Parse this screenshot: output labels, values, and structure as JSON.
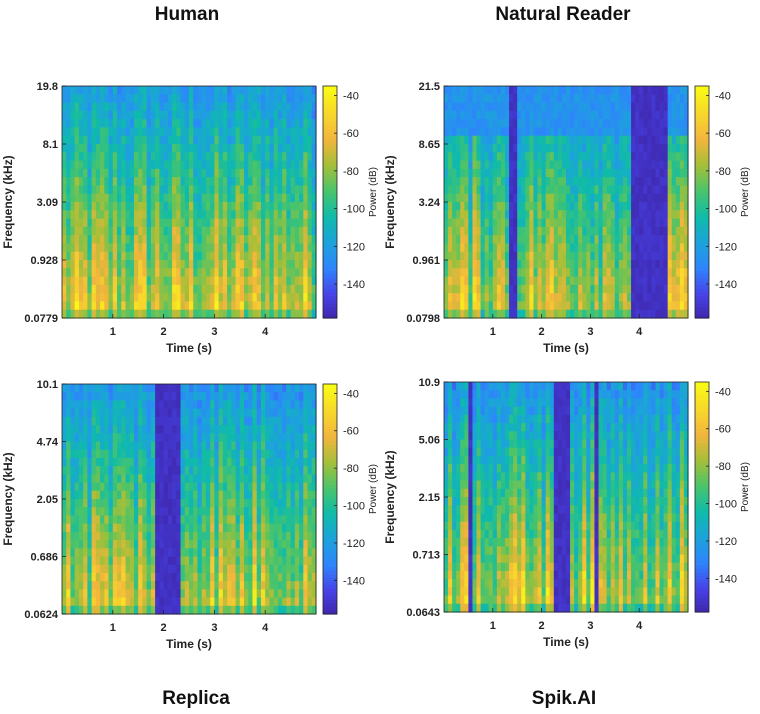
{
  "titles": {
    "human": "Human",
    "natural_reader": "Natural Reader",
    "replica": "Replica",
    "spik_ai": "Spik.AI"
  },
  "colors": {
    "colormap": [
      "#3e26a8",
      "#4743e8",
      "#2e85fc",
      "#1ca3db",
      "#0fbba9",
      "#4ac46a",
      "#a6bf38",
      "#f2b53d",
      "#f8d82b",
      "#f9fb15"
    ],
    "axis": "#222222"
  },
  "chart_data": [
    {
      "type": "heatmap",
      "name": "Human",
      "xlabel": "Time (s)",
      "ylabel": "Frequency (kHz)",
      "colorbar_label": "Power (dB)",
      "x_ticks": [
        "1",
        "2",
        "3",
        "4"
      ],
      "x_tick_values": [
        1,
        2,
        3,
        4
      ],
      "xlim": [
        0,
        5
      ],
      "y_ticks": [
        "0.0779",
        "0.928",
        "3.09",
        "8.1",
        "19.8"
      ],
      "colorbar_ticks": [
        "-40",
        "-60",
        "-80",
        "-100",
        "-120",
        "-140"
      ],
      "colorbar_tick_values": [
        -40,
        -60,
        -80,
        -100,
        -120,
        -140
      ],
      "clim": [
        -158,
        -35
      ],
      "gaps": []
    },
    {
      "type": "heatmap",
      "name": "Natural Reader",
      "xlabel": "Time (s)",
      "ylabel": "Frequency (kHz)",
      "colorbar_label": "Power (dB)",
      "x_ticks": [
        "1",
        "2",
        "3",
        "4"
      ],
      "x_tick_values": [
        1,
        2,
        3,
        4
      ],
      "xlim": [
        0,
        5
      ],
      "y_ticks": [
        "0.0798",
        "0.961",
        "3.24",
        "8.65",
        "21.5"
      ],
      "colorbar_ticks": [
        "-40",
        "-60",
        "-80",
        "-100",
        "-120",
        "-140"
      ],
      "colorbar_tick_values": [
        -40,
        -60,
        -80,
        -100,
        -120,
        -140
      ],
      "clim": [
        -158,
        -35
      ],
      "gaps": [
        [
          1.35,
          1.5
        ],
        [
          3.8,
          4.6
        ]
      ]
    },
    {
      "type": "heatmap",
      "name": "Replica",
      "xlabel": "Time (s)",
      "ylabel": "Frequency (kHz)",
      "colorbar_label": "Power (dB)",
      "x_ticks": [
        "1",
        "2",
        "3",
        "4"
      ],
      "x_tick_values": [
        1,
        2,
        3,
        4
      ],
      "xlim": [
        0,
        5
      ],
      "y_ticks": [
        "0.0624",
        "0.686",
        "2.05",
        "4.74",
        "10.1"
      ],
      "colorbar_ticks": [
        "-40",
        "-60",
        "-80",
        "-100",
        "-120",
        "-140"
      ],
      "colorbar_tick_values": [
        -40,
        -60,
        -80,
        -100,
        -120,
        -140
      ],
      "clim": [
        -158,
        -35
      ],
      "gaps": [
        [
          1.85,
          2.3
        ]
      ]
    },
    {
      "type": "heatmap",
      "name": "Spik.AI",
      "xlabel": "Time (s)",
      "ylabel": "Frequency (kHz)",
      "colorbar_label": "Power (dB)",
      "x_ticks": [
        "1",
        "2",
        "3",
        "4"
      ],
      "x_tick_values": [
        1,
        2,
        3,
        4
      ],
      "xlim": [
        0,
        5
      ],
      "y_ticks": [
        "0.0643",
        "0.713",
        "2.15",
        "5.06",
        "10.9"
      ],
      "colorbar_ticks": [
        "-40",
        "-60",
        "-80",
        "-100",
        "-120",
        "-140"
      ],
      "colorbar_tick_values": [
        -40,
        -60,
        -80,
        -100,
        -120,
        -140
      ],
      "clim": [
        -158,
        -35
      ],
      "gaps": [
        [
          0.5,
          0.6
        ],
        [
          2.25,
          2.55
        ],
        [
          3.1,
          3.2
        ]
      ]
    }
  ]
}
